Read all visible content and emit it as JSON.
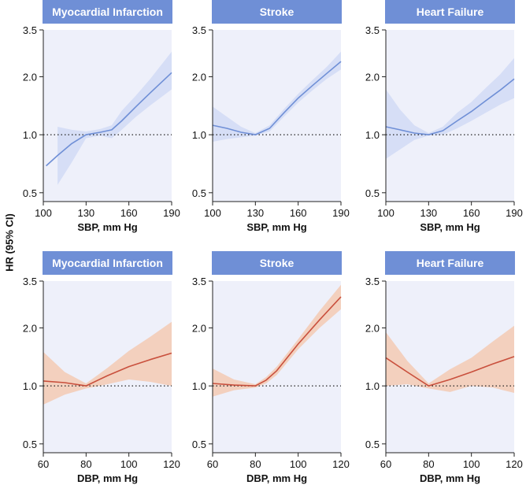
{
  "figure": {
    "shared_ylabel": "HR (95% CI)"
  },
  "chart_data": [
    {
      "type": "line",
      "title": "Myocardial Infarction",
      "xlabel": "SBP, mm Hg",
      "ylabel": "HR (95% CI)",
      "log_y": true,
      "xlim": [
        100,
        190
      ],
      "ylim": [
        0.45,
        3.5
      ],
      "x_ticks": [
        100,
        130,
        160,
        190
      ],
      "y_ticks": [
        0.5,
        1.0,
        2.0,
        3.5
      ],
      "y_tick_labels": [
        "0.5",
        "1.0",
        "2.0",
        "3.5"
      ],
      "reference_line": 1.0,
      "color": "#6f8fd6",
      "band_color": "#d4dcf5",
      "panel_bg": "#eef0fa",
      "header_bg": "#6f8fd6",
      "series": [
        {
          "x": [
            102,
            110,
            120,
            130,
            140,
            148,
            155,
            165,
            175,
            190
          ],
          "y": [
            0.69,
            0.78,
            0.9,
            1.0,
            1.03,
            1.06,
            1.18,
            1.4,
            1.65,
            2.1
          ],
          "lower": [
            null,
            0.55,
            0.72,
            0.96,
            0.99,
            0.96,
            1.06,
            1.24,
            1.42,
            1.72
          ],
          "upper": [
            null,
            1.1,
            1.06,
            1.04,
            1.07,
            1.12,
            1.33,
            1.6,
            1.95,
            2.7
          ]
        }
      ]
    },
    {
      "type": "line",
      "title": "Stroke",
      "xlabel": "SBP, mm Hg",
      "ylabel": "HR (95% CI)",
      "log_y": true,
      "xlim": [
        100,
        190
      ],
      "ylim": [
        0.45,
        3.5
      ],
      "x_ticks": [
        100,
        130,
        160,
        190
      ],
      "y_ticks": [
        0.5,
        1.0,
        2.0,
        3.5
      ],
      "y_tick_labels": [
        "0.5",
        "1.0",
        "2.0",
        "3.5"
      ],
      "reference_line": 1.0,
      "color": "#6f8fd6",
      "band_color": "#d4dcf5",
      "panel_bg": "#eef0fa",
      "header_bg": "#6f8fd6",
      "series": [
        {
          "x": [
            100,
            110,
            120,
            130,
            140,
            150,
            160,
            170,
            180,
            190
          ],
          "y": [
            1.12,
            1.08,
            1.03,
            1.0,
            1.08,
            1.3,
            1.55,
            1.8,
            2.08,
            2.4
          ],
          "lower": [
            0.92,
            0.95,
            0.97,
            0.99,
            1.04,
            1.24,
            1.47,
            1.7,
            1.95,
            2.18
          ],
          "upper": [
            1.4,
            1.24,
            1.1,
            1.02,
            1.12,
            1.36,
            1.63,
            1.92,
            2.25,
            2.7
          ]
        }
      ]
    },
    {
      "type": "line",
      "title": "Heart Failure",
      "xlabel": "SBP, mm Hg",
      "ylabel": "HR (95% CI)",
      "log_y": true,
      "xlim": [
        100,
        190
      ],
      "ylim": [
        0.45,
        3.5
      ],
      "x_ticks": [
        100,
        130,
        160,
        190
      ],
      "y_ticks": [
        0.5,
        1.0,
        2.0,
        3.5
      ],
      "y_tick_labels": [
        "0.5",
        "1.0",
        "2.0",
        "3.5"
      ],
      "reference_line": 1.0,
      "color": "#6f8fd6",
      "band_color": "#d4dcf5",
      "panel_bg": "#eef0fa",
      "header_bg": "#6f8fd6",
      "series": [
        {
          "x": [
            100,
            110,
            120,
            130,
            140,
            150,
            160,
            170,
            180,
            190
          ],
          "y": [
            1.1,
            1.06,
            1.02,
            1.0,
            1.05,
            1.18,
            1.32,
            1.5,
            1.7,
            1.95
          ],
          "lower": [
            0.75,
            0.84,
            0.94,
            0.99,
            1.0,
            1.08,
            1.18,
            1.3,
            1.43,
            1.55
          ],
          "upper": [
            1.72,
            1.35,
            1.12,
            1.02,
            1.1,
            1.3,
            1.48,
            1.75,
            2.05,
            2.5
          ]
        }
      ]
    },
    {
      "type": "line",
      "title": "Myocardial Infarction",
      "xlabel": "DBP, mm Hg",
      "ylabel": "HR (95% CI)",
      "log_y": true,
      "xlim": [
        60,
        120
      ],
      "ylim": [
        0.45,
        3.5
      ],
      "x_ticks": [
        60,
        80,
        100,
        120
      ],
      "y_ticks": [
        0.5,
        1.0,
        2.0,
        3.5
      ],
      "y_tick_labels": [
        "0.5",
        "1.0",
        "2.0",
        "3.5"
      ],
      "reference_line": 1.0,
      "color": "#c9503d",
      "band_color": "#f2cdbb",
      "panel_bg": "#eef0fa",
      "header_bg": "#6f8fd6",
      "series": [
        {
          "x": [
            60,
            70,
            80,
            90,
            100,
            110,
            120
          ],
          "y": [
            1.06,
            1.04,
            1.0,
            1.13,
            1.26,
            1.37,
            1.48
          ],
          "lower": [
            0.8,
            0.9,
            0.97,
            1.02,
            1.08,
            1.05,
            1.0
          ],
          "upper": [
            1.5,
            1.18,
            1.03,
            1.24,
            1.52,
            1.8,
            2.15
          ]
        }
      ]
    },
    {
      "type": "line",
      "title": "Stroke",
      "xlabel": "DBP, mm Hg",
      "ylabel": "HR (95% CI)",
      "log_y": true,
      "xlim": [
        60,
        120
      ],
      "ylim": [
        0.45,
        3.5
      ],
      "x_ticks": [
        60,
        80,
        100,
        120
      ],
      "y_ticks": [
        0.5,
        1.0,
        2.0,
        3.5
      ],
      "y_tick_labels": [
        "0.5",
        "1.0",
        "2.0",
        "3.5"
      ],
      "reference_line": 1.0,
      "color": "#c9503d",
      "band_color": "#f2cdbb",
      "panel_bg": "#eef0fa",
      "header_bg": "#6f8fd6",
      "series": [
        {
          "x": [
            60,
            70,
            80,
            85,
            90,
            100,
            110,
            120
          ],
          "y": [
            1.03,
            1.01,
            1.0,
            1.07,
            1.2,
            1.65,
            2.2,
            2.9
          ],
          "lower": [
            0.88,
            0.95,
            0.98,
            1.03,
            1.14,
            1.55,
            2.0,
            2.5
          ],
          "upper": [
            1.23,
            1.08,
            1.02,
            1.11,
            1.26,
            1.75,
            2.45,
            3.35
          ]
        }
      ]
    },
    {
      "type": "line",
      "title": "Heart Failure",
      "xlabel": "DBP, mm Hg",
      "ylabel": "HR (95% CI)",
      "log_y": true,
      "xlim": [
        60,
        120
      ],
      "ylim": [
        0.45,
        3.5
      ],
      "x_ticks": [
        60,
        80,
        100,
        120
      ],
      "y_ticks": [
        0.5,
        1.0,
        2.0,
        3.5
      ],
      "y_tick_labels": [
        "0.5",
        "1.0",
        "2.0",
        "3.5"
      ],
      "reference_line": 1.0,
      "color": "#c9503d",
      "band_color": "#f2cdbb",
      "panel_bg": "#eef0fa",
      "header_bg": "#6f8fd6",
      "series": [
        {
          "x": [
            60,
            70,
            80,
            90,
            100,
            110,
            120
          ],
          "y": [
            1.4,
            1.18,
            1.0,
            1.08,
            1.18,
            1.3,
            1.42
          ],
          "lower": [
            1.0,
            1.02,
            0.97,
            0.93,
            1.0,
            0.98,
            0.92
          ],
          "upper": [
            1.9,
            1.35,
            1.03,
            1.22,
            1.4,
            1.7,
            2.05
          ]
        }
      ]
    }
  ]
}
